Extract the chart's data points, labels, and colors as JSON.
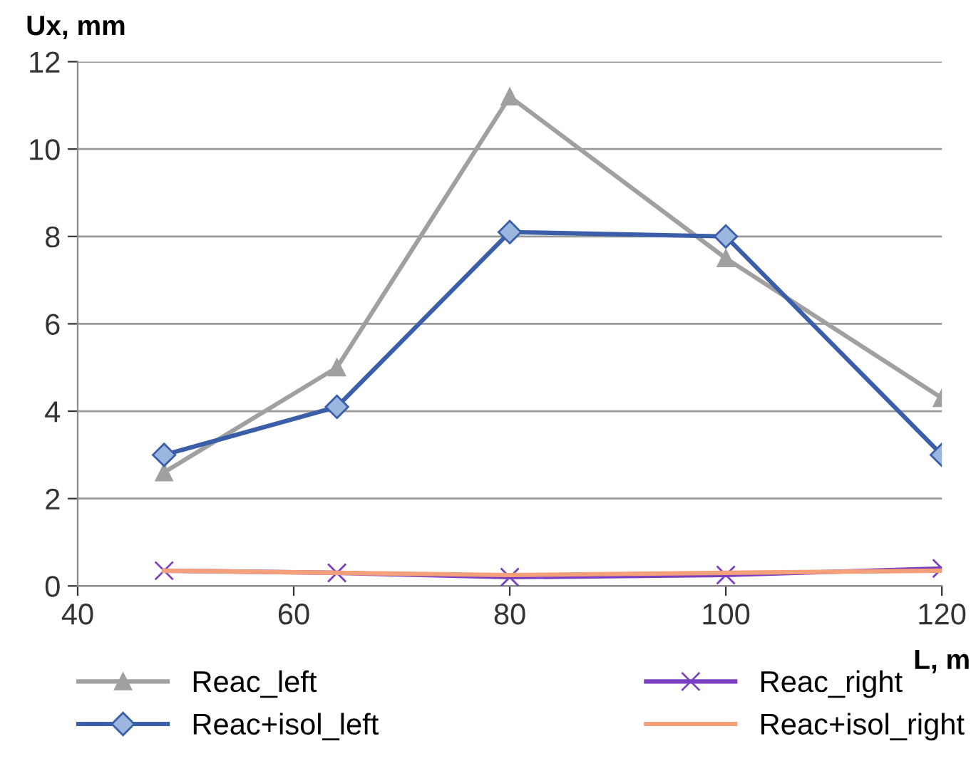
{
  "chart_data": {
    "type": "line",
    "xlabel": "L, m",
    "ylabel": "Ux, mm",
    "x": [
      48,
      64,
      80,
      100,
      120
    ],
    "xlim": [
      40,
      120
    ],
    "xticks": [
      40,
      60,
      80,
      100,
      120
    ],
    "ylim": [
      0,
      12
    ],
    "yticks": [
      0,
      2,
      4,
      6,
      8,
      10,
      12
    ],
    "grid": "y",
    "legend": "bottom",
    "line_style": "solid",
    "series": [
      {
        "name": "Reac_left",
        "color": "#a0a0a0",
        "marker": "triangle",
        "values": [
          2.6,
          5.0,
          11.2,
          7.5,
          4.3
        ]
      },
      {
        "name": "Reac+isol_left",
        "color": "#3a5ea8",
        "marker": "diamond",
        "values": [
          3.0,
          4.1,
          8.1,
          8.0,
          3.0
        ]
      },
      {
        "name": "Reac_right",
        "color": "#7a3fc0",
        "marker": "cross",
        "values": [
          0.35,
          0.3,
          0.2,
          0.25,
          0.4
        ]
      },
      {
        "name": "Reac+isol_right",
        "color": "#f4a07a",
        "marker": "none",
        "values": [
          0.35,
          0.3,
          0.25,
          0.3,
          0.35
        ]
      }
    ]
  }
}
